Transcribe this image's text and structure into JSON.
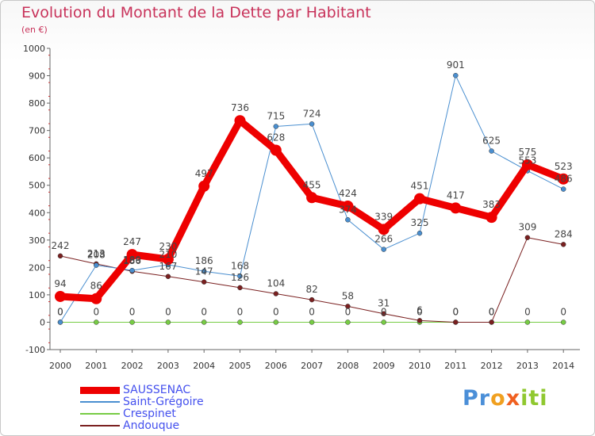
{
  "chart_data": {
    "type": "line",
    "title": "Evolution du Montant de la Dette par Habitant",
    "subtitle": "(en €)",
    "categories": [
      "2000",
      "2001",
      "2002",
      "2003",
      "2004",
      "2005",
      "2006",
      "2007",
      "2008",
      "2009",
      "2010",
      "2011",
      "2012",
      "2013",
      "2014"
    ],
    "ylim": [
      -100,
      1000
    ],
    "yticks": [
      "-100",
      "0",
      "100",
      "200",
      "300",
      "400",
      "500",
      "600",
      "700",
      "800",
      "900",
      "1000"
    ],
    "grid": false,
    "legend_position": "bottom-left",
    "series": [
      {
        "name": "SAUSSENAC",
        "color": "#ee0000",
        "values": [
          94,
          86,
          247,
          230,
          497,
          736,
          628,
          455,
          424,
          339,
          451,
          417,
          383,
          575,
          523
        ]
      },
      {
        "name": "Saint-Grégoire",
        "color": "#4a8fd0",
        "values": [
          0,
          208,
          189,
          210,
          186,
          168,
          715,
          724,
          374,
          266,
          325,
          901,
          625,
          553,
          486
        ]
      },
      {
        "name": "Crespinet",
        "color": "#77cc44",
        "values": [
          0,
          0,
          0,
          0,
          0,
          0,
          0,
          0,
          0,
          0,
          0,
          0,
          0,
          0,
          0
        ]
      },
      {
        "name": "Andouque",
        "color": "#7a2020",
        "values": [
          242,
          213,
          186,
          167,
          147,
          126,
          104,
          82,
          58,
          31,
          6,
          0,
          0,
          309,
          284
        ]
      }
    ]
  },
  "logo": {
    "letters": [
      "P",
      "r",
      "o",
      "x",
      "i",
      "t",
      "i"
    ],
    "colors": [
      "#4b8fd8",
      "#4b8fd8",
      "#f0a020",
      "#f06020",
      "#90c830",
      "#90c830",
      "#90c830"
    ]
  }
}
